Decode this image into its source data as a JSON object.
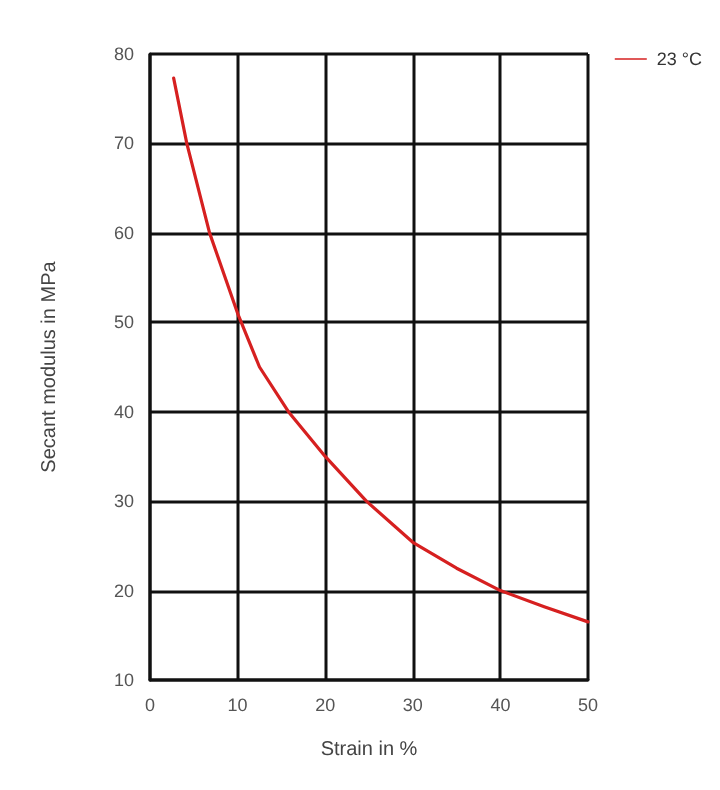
{
  "chart_data": {
    "type": "line",
    "xlabel": "Strain in %",
    "ylabel": "Secant modulus in MPa",
    "series": [
      {
        "name": "23 °C",
        "color": "#d62020",
        "x": [
          2.7,
          4.2,
          6.8,
          10,
          12.5,
          15.8,
          20,
          24.7,
          30,
          35,
          40,
          45,
          50
        ],
        "values": [
          77.3,
          70,
          60,
          51,
          45,
          40,
          35,
          30,
          25.4,
          22.5,
          20,
          18.2,
          16.5
        ]
      }
    ],
    "xlim": [
      0,
      50
    ],
    "xticks": [
      0,
      10,
      20,
      30,
      40,
      50
    ],
    "ylim": [
      10,
      80
    ],
    "yticks": [
      10,
      20,
      30,
      40,
      50,
      60,
      70,
      80
    ],
    "grid": true,
    "legend": "top right",
    "marker": "none",
    "line_style": "solid"
  }
}
